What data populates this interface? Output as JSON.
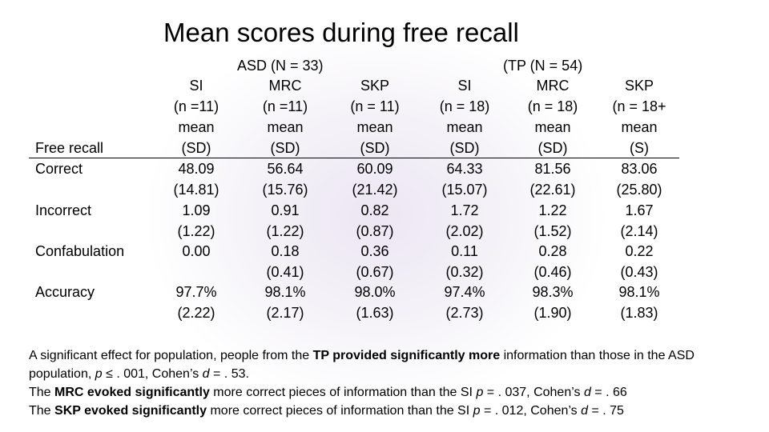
{
  "title": "Mean scores during free recall",
  "groups": {
    "asd": "ASD (N = 33)",
    "tp": "(TP (N = 54)"
  },
  "columns": [
    {
      "h": [
        "SI",
        "(n =11)",
        "mean",
        "(SD)"
      ],
      "v": [
        "48.09",
        "(14.81)",
        "1.09",
        "(1.22)",
        "0.00",
        "",
        "97.7%",
        "(2.22)"
      ]
    },
    {
      "h": [
        "MRC",
        "(n =11)",
        "mean",
        "(SD)"
      ],
      "v": [
        "56.64",
        "(15.76)",
        "0.91",
        "(1.22)",
        "0.18",
        "(0.41)",
        "98.1%",
        "(2.17)"
      ]
    },
    {
      "h": [
        "SKP",
        "(n = 11)",
        "mean",
        "(SD)"
      ],
      "v": [
        "60.09",
        "(21.42)",
        "0.82",
        "(0.87)",
        "0.36",
        "(0.67)",
        "98.0%",
        "(1.63)"
      ]
    },
    {
      "h": [
        "SI",
        "(n = 18)",
        "mean",
        "(SD)"
      ],
      "v": [
        "64.33",
        "(15.07)",
        "1.72",
        "(2.02)",
        "0.11",
        "(0.32)",
        "97.4%",
        "(2.73)"
      ]
    },
    {
      "h": [
        "MRC",
        "(n = 18)",
        "mean",
        "(SD)"
      ],
      "v": [
        "81.56",
        "(22.61)",
        "1.22",
        "(1.52)",
        "0.28",
        "(0.46)",
        "98.3%",
        "(1.90)"
      ]
    },
    {
      "h": [
        "SKP",
        "(n = 18+",
        "mean",
        "(S)"
      ],
      "v": [
        "83.06",
        "(25.80)",
        "1.67",
        "(2.14)",
        "0.22",
        "(0.43)",
        "98.1%",
        "(1.83)"
      ]
    }
  ],
  "row_labels": {
    "free_recall": "Free recall",
    "correct": "Correct",
    "incorrect": "Incorrect",
    "confabulation": "Confabulation",
    "accuracy": "Accuracy"
  },
  "notes": {
    "n1a": "A significant effect for population, people from the ",
    "n1b": "TP provided significantly more",
    "n1c": " information than those in the ASD population, ",
    "n1d": "p",
    "n1e": " ≤ . 001, Cohen’s ",
    "n1f": "d",
    "n1g": " = . 53.",
    "n2a": "The ",
    "n2b": "MRC evoked significantly",
    "n2c": " more correct pieces of information than the SI ",
    "n2d": "p",
    "n2e": " = . 037, Cohen’s ",
    "n2f": "d",
    "n2g": " = . 66",
    "n3a": "The ",
    "n3b": "SKP evoked significantly",
    "n3c": " more correct pieces of information than the SI ",
    "n3d": "p",
    "n3e": " = . 012, Cohen’s ",
    "n3f": "d",
    "n3g": " = . 75"
  }
}
